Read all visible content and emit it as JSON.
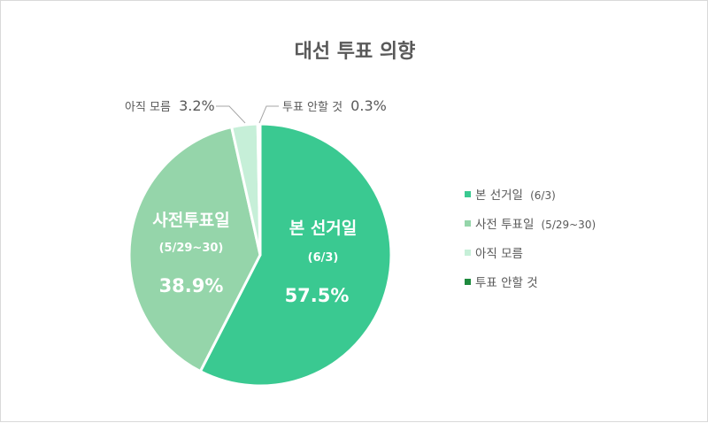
{
  "chart_data": {
    "type": "pie",
    "title": "대선 투표 의향",
    "slices": [
      {
        "label": "본 선거일",
        "sublabel": "(6/3)",
        "value": 57.5,
        "value_label": "57.5%",
        "color": "#3ac991"
      },
      {
        "label": "사전투표일",
        "legend_label": "사전 투표일",
        "sublabel": "(5/29~30)",
        "value": 38.9,
        "value_label": "38.9%",
        "color": "#95d5aa"
      },
      {
        "label": "아직 모름",
        "value": 3.2,
        "value_label": "3.2%",
        "color": "#c6efd8"
      },
      {
        "label": "투표 안할 것",
        "value": 0.3,
        "value_label": "0.3%",
        "color": "#1e8a3e"
      }
    ],
    "legend_position": "right",
    "start_angle_deg": 0,
    "direction": "clockwise"
  }
}
